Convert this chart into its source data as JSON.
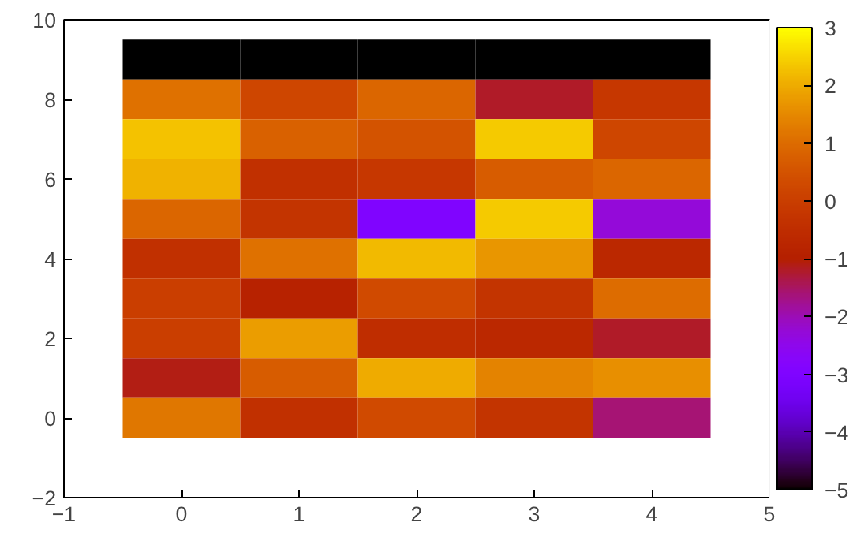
{
  "chart_data": {
    "type": "heatmap",
    "x": [
      0,
      1,
      2,
      3,
      4
    ],
    "y": [
      9,
      8,
      7,
      6,
      5,
      4,
      3,
      2,
      1,
      0
    ],
    "cells": [
      [
        -5,
        -5,
        -5,
        -5,
        -5
      ],
      [
        1.1,
        0.2,
        0.9,
        -1.2,
        -0.2
      ],
      [
        2.3,
        0.8,
        0.5,
        2.4,
        0.2
      ],
      [
        2.1,
        -0.4,
        -0.2,
        0.7,
        0.9
      ],
      [
        0.9,
        -0.3,
        -3,
        2.4,
        -2.3
      ],
      [
        -0.4,
        1.1,
        2.2,
        1.7,
        -0.7
      ],
      [
        0,
        -0.9,
        0.3,
        -0.3,
        1.0
      ],
      [
        0,
        1.8,
        -0.5,
        -0.7,
        -1.2
      ],
      [
        -1.1,
        0.7,
        2.0,
        1.4,
        1.6
      ],
      [
        1.2,
        -0.4,
        0.3,
        -0.3,
        -1.6
      ]
    ],
    "xlim": [
      -1,
      5
    ],
    "xticks": [
      -1,
      0,
      1,
      2,
      3,
      4,
      5
    ],
    "ylim": [
      -2,
      10
    ],
    "yticks": [
      -2,
      0,
      2,
      4,
      6,
      8,
      10
    ],
    "clim": [
      -5,
      3
    ],
    "cticks": [
      -5,
      -4,
      -3,
      -2,
      -1,
      0,
      1,
      2,
      3
    ]
  }
}
